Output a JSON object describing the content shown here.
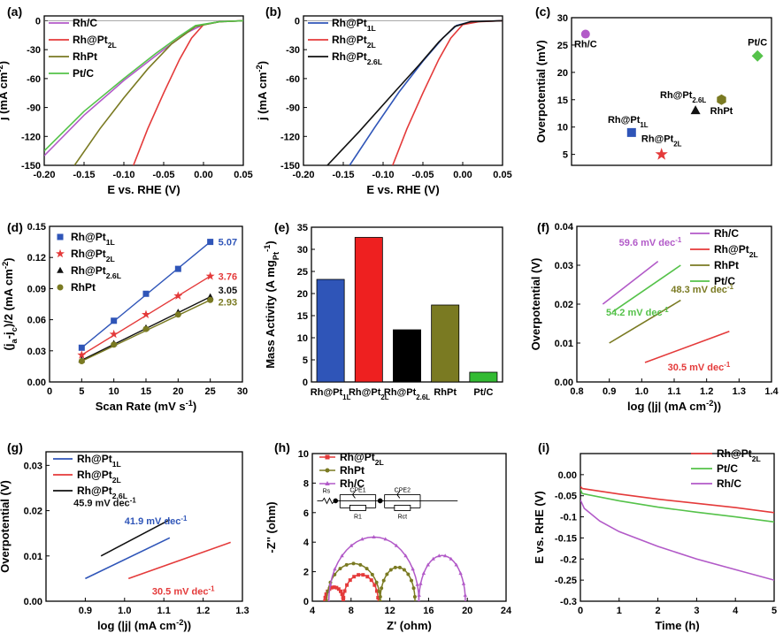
{
  "chart_data": [
    {
      "id": "a",
      "panel_label": "(a)",
      "type": "line",
      "xlabel": "E vs. RHE (V)",
      "ylabel": "j (mA cm-2)",
      "xlim": [
        -0.2,
        0.05
      ],
      "ylim": [
        -150,
        5
      ],
      "xticks": [
        "-0.20",
        "-0.15",
        "-0.10",
        "-0.05",
        "0.00",
        "0.05"
      ],
      "yticks": [
        "0",
        "-30",
        "-60",
        "-90",
        "-120",
        "-150"
      ],
      "legend": "top-left",
      "series": [
        {
          "name": "Rh/C",
          "color": "#b25ac8",
          "x": [
            -0.2,
            -0.15,
            -0.1,
            -0.05,
            -0.02,
            0.0,
            0.02,
            0.05
          ],
          "y": [
            -140,
            -98,
            -62,
            -30,
            -12,
            -4,
            -1,
            0
          ]
        },
        {
          "name": "Rh@Pt2L",
          "color": "#e43a3a",
          "x": [
            -0.088,
            -0.07,
            -0.05,
            -0.03,
            -0.015,
            0.0,
            0.02,
            0.05
          ],
          "y": [
            -150,
            -112,
            -75,
            -40,
            -18,
            -4,
            -1,
            0
          ]
        },
        {
          "name": "RhPt",
          "color": "#7a7a22",
          "x": [
            -0.162,
            -0.13,
            -0.1,
            -0.07,
            -0.04,
            -0.01,
            0.02,
            0.05
          ],
          "y": [
            -150,
            -112,
            -80,
            -50,
            -24,
            -6,
            -1,
            0
          ]
        },
        {
          "name": "Pt/C",
          "color": "#55c24a",
          "x": [
            -0.2,
            -0.15,
            -0.1,
            -0.06,
            -0.03,
            -0.01,
            0.02,
            0.05
          ],
          "y": [
            -135,
            -94,
            -60,
            -34,
            -16,
            -5,
            -1,
            0
          ]
        }
      ]
    },
    {
      "id": "b",
      "panel_label": "(b)",
      "type": "line",
      "xlabel": "E vs. RHE (V)",
      "ylabel": "j (mA cm-2)",
      "xlim": [
        -0.2,
        0.05
      ],
      "ylim": [
        -150,
        5
      ],
      "xticks": [
        "-0.20",
        "-0.15",
        "-0.10",
        "-0.05",
        "0.00",
        "0.05"
      ],
      "yticks": [
        "0",
        "-30",
        "-60",
        "-90",
        "-120",
        "-150"
      ],
      "legend": "top-left",
      "series": [
        {
          "name": "Rh@Pt1L",
          "color": "#2f55b8",
          "x": [
            -0.142,
            -0.11,
            -0.08,
            -0.05,
            -0.025,
            -0.008,
            0.01,
            0.05
          ],
          "y": [
            -150,
            -110,
            -74,
            -42,
            -18,
            -5,
            -1,
            0
          ]
        },
        {
          "name": "Rh@Pt2L",
          "color": "#e43a3a",
          "x": [
            -0.088,
            -0.07,
            -0.05,
            -0.03,
            -0.015,
            0.0,
            0.02,
            0.05
          ],
          "y": [
            -150,
            -112,
            -75,
            -40,
            -18,
            -4,
            -1,
            0
          ]
        },
        {
          "name": "Rh@Pt2.6L",
          "color": "#111111",
          "x": [
            -0.17,
            -0.13,
            -0.09,
            -0.055,
            -0.03,
            -0.01,
            0.01,
            0.05
          ],
          "y": [
            -150,
            -115,
            -78,
            -46,
            -22,
            -6,
            -1,
            0
          ]
        }
      ]
    },
    {
      "id": "c",
      "panel_label": "(c)",
      "type": "scatter",
      "ylabel": "Overpotential (mV)",
      "ylim": [
        3,
        30
      ],
      "yticks": [
        "5",
        "10",
        "15",
        "20",
        "25",
        "30"
      ],
      "points": [
        {
          "label": "Rh/C",
          "value": 27,
          "color": "#b25ac8",
          "marker": "circle",
          "xpos": 0.07
        },
        {
          "label": "Rh@Pt1L",
          "value": 9,
          "color": "#2f55b8",
          "marker": "square",
          "xpos": 0.3
        },
        {
          "label": "Rh@Pt2L",
          "value": 5,
          "color": "#e43a3a",
          "marker": "star",
          "xpos": 0.45
        },
        {
          "label": "Rh@Pt2.6L",
          "value": 13,
          "color": "#111111",
          "marker": "triangle",
          "xpos": 0.62
        },
        {
          "label": "RhPt",
          "value": 15,
          "color": "#7a7a22",
          "marker": "hexagon",
          "xpos": 0.75
        },
        {
          "label": "Pt/C",
          "value": 23,
          "color": "#55c24a",
          "marker": "diamond",
          "xpos": 0.93
        }
      ]
    },
    {
      "id": "d",
      "panel_label": "(d)",
      "type": "scatter",
      "xlabel": "Scan Rate (mV s-1)",
      "ylabel": "(ja-jc)/2 (mA cm-2)",
      "xlim": [
        0,
        30
      ],
      "ylim": [
        0,
        0.15
      ],
      "xticks": [
        "0",
        "5",
        "10",
        "15",
        "20",
        "25",
        "30"
      ],
      "yticks": [
        "0.00",
        "0.03",
        "0.06",
        "0.09",
        "0.12",
        "0.15"
      ],
      "legend": "top-left",
      "series": [
        {
          "name": "Rh@Pt1L",
          "color": "#2f55b8",
          "marker": "square",
          "x": [
            5,
            10,
            15,
            20,
            25
          ],
          "y": [
            0.033,
            0.059,
            0.085,
            0.109,
            0.135
          ],
          "slope_label": "5.07"
        },
        {
          "name": "Rh@Pt2L",
          "color": "#e43a3a",
          "marker": "star",
          "x": [
            5,
            10,
            15,
            20,
            25
          ],
          "y": [
            0.026,
            0.046,
            0.065,
            0.083,
            0.102
          ],
          "slope_label": "3.76"
        },
        {
          "name": "Rh@Pt2.6L",
          "color": "#111111",
          "marker": "triangle",
          "x": [
            5,
            10,
            15,
            20,
            25
          ],
          "y": [
            0.021,
            0.037,
            0.052,
            0.067,
            0.082
          ],
          "slope_label": "3.05"
        },
        {
          "name": "RhPt",
          "color": "#7a7a22",
          "marker": "circle",
          "x": [
            5,
            10,
            15,
            20,
            25
          ],
          "y": [
            0.02,
            0.036,
            0.051,
            0.065,
            0.079
          ],
          "slope_label": "2.93"
        }
      ]
    },
    {
      "id": "e",
      "panel_label": "(e)",
      "type": "bar",
      "ylabel": "Mass Activity (A mgPt-1)",
      "ylim": [
        0,
        35
      ],
      "yticks": [
        "0",
        "5",
        "10",
        "15",
        "20",
        "25",
        "30",
        "35"
      ],
      "categories": [
        "Rh@Pt1L",
        "Rh@Pt2L",
        "Rh@Pt2.6L",
        "RhPt",
        "Pt/C"
      ],
      "values": [
        23.2,
        32.7,
        11.8,
        17.4,
        2.2
      ],
      "colors": [
        "#2f55b8",
        "#ee2020",
        "#000000",
        "#7a7a22",
        "#33bb33"
      ]
    },
    {
      "id": "f",
      "panel_label": "(f)",
      "type": "line",
      "xlabel": "log (|j| (mA cm-2))",
      "ylabel": "Overpotential (V)",
      "xlim": [
        0.8,
        1.4
      ],
      "ylim": [
        0,
        0.04
      ],
      "xticks": [
        "0.8",
        "0.9",
        "1.0",
        "1.1",
        "1.2",
        "1.3",
        "1.4"
      ],
      "yticks": [
        "0.00",
        "0.01",
        "0.02",
        "0.03",
        "0.04"
      ],
      "legend": "top-right",
      "series": [
        {
          "name": "Rh/C",
          "color": "#b25ac8",
          "x": [
            0.88,
            1.05
          ],
          "y": [
            0.02,
            0.031
          ],
          "tafel": "59.6 mV dec-1"
        },
        {
          "name": "Rh@Pt2L",
          "color": "#e43a3a",
          "x": [
            1.01,
            1.27
          ],
          "y": [
            0.005,
            0.013
          ],
          "tafel": "30.5 mV dec-1"
        },
        {
          "name": "RhPt",
          "color": "#7a7a22",
          "x": [
            0.9,
            1.12
          ],
          "y": [
            0.01,
            0.021
          ],
          "tafel": "48.3 mV dec-1"
        },
        {
          "name": "Pt/C",
          "color": "#55c24a",
          "x": [
            0.91,
            1.12
          ],
          "y": [
            0.018,
            0.03
          ],
          "tafel": "54.2 mV dec-1"
        }
      ]
    },
    {
      "id": "g",
      "panel_label": "(g)",
      "type": "line",
      "xlabel": "log (|j| (mA cm-2))",
      "ylabel": "Overpotential (V)",
      "xlim": [
        0.8,
        1.3
      ],
      "ylim": [
        0,
        0.033
      ],
      "xticks": [
        "0.9",
        "1.0",
        "1.1",
        "1.2",
        "1.3"
      ],
      "yticks": [
        "0.00",
        "0.01",
        "0.02",
        "0.03"
      ],
      "legend": "top-left",
      "series": [
        {
          "name": "Rh@Pt1L",
          "color": "#2f55b8",
          "x": [
            0.9,
            1.115
          ],
          "y": [
            0.005,
            0.014
          ],
          "tafel": "41.9 mV dec-1"
        },
        {
          "name": "Rh@Pt2L",
          "color": "#e43a3a",
          "x": [
            1.01,
            1.27
          ],
          "y": [
            0.005,
            0.013
          ],
          "tafel": "30.5 mV dec-1"
        },
        {
          "name": "Rh@Pt2.6L",
          "color": "#111111",
          "x": [
            0.94,
            1.115
          ],
          "y": [
            0.01,
            0.018
          ],
          "tafel": "45.9 mV dec-1"
        }
      ]
    },
    {
      "id": "h",
      "panel_label": "(h)",
      "type": "scatter",
      "xlabel": "Z' (ohm)",
      "ylabel": "-Z'' (ohm)",
      "xlim": [
        4,
        24
      ],
      "ylim": [
        0,
        10
      ],
      "xticks": [
        "4",
        "8",
        "12",
        "16",
        "20",
        "24"
      ],
      "yticks": [
        "0",
        "2",
        "4",
        "6",
        "8",
        "10"
      ],
      "legend": "top-left",
      "circuit_labels": [
        "Rs",
        "CPE1",
        "R1",
        "CPE2",
        "Rct"
      ],
      "series": [
        {
          "name": "Rh@Pt2L",
          "color": "#e43a3a",
          "marker": "square",
          "arcs": [
            [
              5.3,
              7.2,
              0.95
            ],
            [
              7.2,
              10.8,
              1.8
            ]
          ]
        },
        {
          "name": "RhPt",
          "color": "#7a7a22",
          "marker": "circle",
          "arcs": [
            [
              5.5,
              11.0,
              2.55
            ],
            [
              11.0,
              14.6,
              2.3
            ]
          ]
        },
        {
          "name": "Rh/C",
          "color": "#b25ac8",
          "marker": "triangle",
          "arcs": [
            [
              5.7,
              15.0,
              4.35
            ],
            [
              15.0,
              19.8,
              3.1
            ]
          ]
        }
      ]
    },
    {
      "id": "i",
      "panel_label": "(i)",
      "type": "line",
      "xlabel": "Time (h)",
      "ylabel": "E vs. RHE (V)",
      "xlim": [
        0,
        5
      ],
      "ylim": [
        -0.3,
        0.05
      ],
      "xticks": [
        "0",
        "1",
        "2",
        "3",
        "4",
        "5"
      ],
      "yticks": [
        "0.00",
        "-0.05",
        "-0.1",
        "-0.15",
        "-0.2",
        "-0.25",
        "-0.3"
      ],
      "legend": "top-right",
      "series": [
        {
          "name": "Rh@Pt2L",
          "color": "#e43a3a",
          "x": [
            0,
            0.05,
            1,
            2,
            3,
            4,
            5
          ],
          "y": [
            -0.028,
            -0.033,
            -0.046,
            -0.058,
            -0.068,
            -0.078,
            -0.09
          ]
        },
        {
          "name": "Pt/C",
          "color": "#55c24a",
          "x": [
            0,
            0.05,
            1,
            2,
            3,
            4,
            5
          ],
          "y": [
            -0.035,
            -0.045,
            -0.062,
            -0.077,
            -0.089,
            -0.1,
            -0.112
          ]
        },
        {
          "name": "Rh/C",
          "color": "#b25ac8",
          "x": [
            0,
            0.1,
            0.5,
            1,
            2,
            3,
            4,
            5
          ],
          "y": [
            -0.06,
            -0.08,
            -0.11,
            -0.135,
            -0.17,
            -0.2,
            -0.225,
            -0.25
          ]
        }
      ]
    }
  ]
}
